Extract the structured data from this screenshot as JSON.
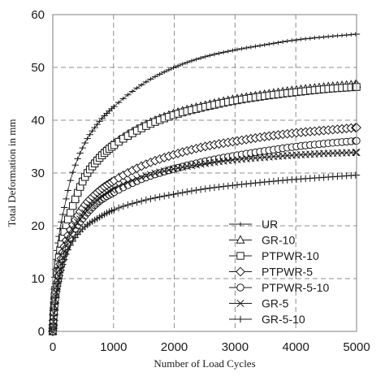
{
  "chart_data": {
    "type": "line",
    "title": "",
    "xlabel": "Number of Load Cycles",
    "ylabel": "Total Deformation in mm",
    "xlim": [
      0,
      5000
    ],
    "ylim": [
      0,
      60
    ],
    "x_ticks": [
      "0",
      "1000",
      "2000",
      "3000",
      "4000",
      "5000"
    ],
    "y_ticks": [
      "0",
      "10",
      "20",
      "30",
      "40",
      "50",
      "60"
    ],
    "grid": true,
    "grid_style": "dashed",
    "legend_position": "bottom-right",
    "series": [
      {
        "name": "UR",
        "marker": "dash",
        "x": [
          0,
          20,
          50,
          100,
          200,
          300,
          500,
          750,
          1000,
          1500,
          2000,
          2500,
          3000,
          3500,
          4000,
          4500,
          5000
        ],
        "y": [
          0,
          8,
          13,
          18,
          24,
          29,
          35,
          39.5,
          42.5,
          47,
          50,
          52,
          53.3,
          54.3,
          55.2,
          55.8,
          56.3
        ]
      },
      {
        "name": "GR-10",
        "marker": "triangle",
        "x": [
          0,
          20,
          50,
          100,
          200,
          300,
          500,
          750,
          1000,
          1500,
          2000,
          2500,
          3000,
          3500,
          4000,
          4500,
          5000
        ],
        "y": [
          0,
          5,
          9,
          14,
          19.5,
          23,
          29,
          33,
          35.5,
          39,
          41.3,
          42.8,
          44,
          44.9,
          45.7,
          46.3,
          46.8
        ]
      },
      {
        "name": "PTPWR-10",
        "marker": "square",
        "x": [
          0,
          20,
          50,
          100,
          200,
          300,
          500,
          750,
          1000,
          1500,
          2000,
          2500,
          3000,
          3500,
          4000,
          4500,
          5000
        ],
        "y": [
          0,
          5,
          9,
          14,
          19.3,
          22.8,
          28.6,
          32.6,
          35.2,
          38.7,
          41,
          42.5,
          43.7,
          44.6,
          45.3,
          45.9,
          46.3
        ]
      },
      {
        "name": "PTPWR-5",
        "marker": "diamond",
        "x": [
          0,
          20,
          50,
          100,
          200,
          300,
          500,
          750,
          1000,
          1500,
          2000,
          2500,
          3000,
          3500,
          4000,
          4500,
          5000
        ],
        "y": [
          0,
          4,
          7.5,
          11.5,
          16.5,
          19.5,
          23.5,
          26.5,
          28.5,
          31.5,
          33.5,
          35,
          36,
          36.9,
          37.6,
          38.1,
          38.6
        ]
      },
      {
        "name": "PTPWR-5-10",
        "marker": "circle",
        "x": [
          0,
          20,
          50,
          100,
          200,
          300,
          500,
          750,
          1000,
          1500,
          2000,
          2500,
          3000,
          3500,
          4000,
          4500,
          5000
        ],
        "y": [
          0,
          3.5,
          7,
          10.5,
          15,
          18,
          21.5,
          24.5,
          26.3,
          29,
          30.8,
          32.2,
          33.3,
          34.2,
          35,
          35.6,
          36.1
        ]
      },
      {
        "name": "GR-5",
        "marker": "x",
        "x": [
          0,
          20,
          50,
          100,
          200,
          300,
          500,
          750,
          1000,
          1500,
          2000,
          2500,
          3000,
          3500,
          4000,
          4500,
          5000
        ],
        "y": [
          0,
          3.5,
          7,
          10.5,
          15.5,
          18.5,
          22,
          25,
          27,
          29.3,
          30.8,
          31.8,
          32.5,
          33,
          33.4,
          33.7,
          33.9
        ]
      },
      {
        "name": "GR-5-10",
        "marker": "plus",
        "x": [
          0,
          20,
          50,
          100,
          200,
          300,
          500,
          750,
          1000,
          1500,
          2000,
          2500,
          3000,
          3500,
          4000,
          4500,
          5000
        ],
        "y": [
          0,
          3,
          6,
          9.5,
          14,
          16.5,
          19.5,
          21.5,
          23,
          24.8,
          26,
          27,
          27.7,
          28.3,
          28.8,
          29.2,
          29.6
        ]
      }
    ]
  }
}
